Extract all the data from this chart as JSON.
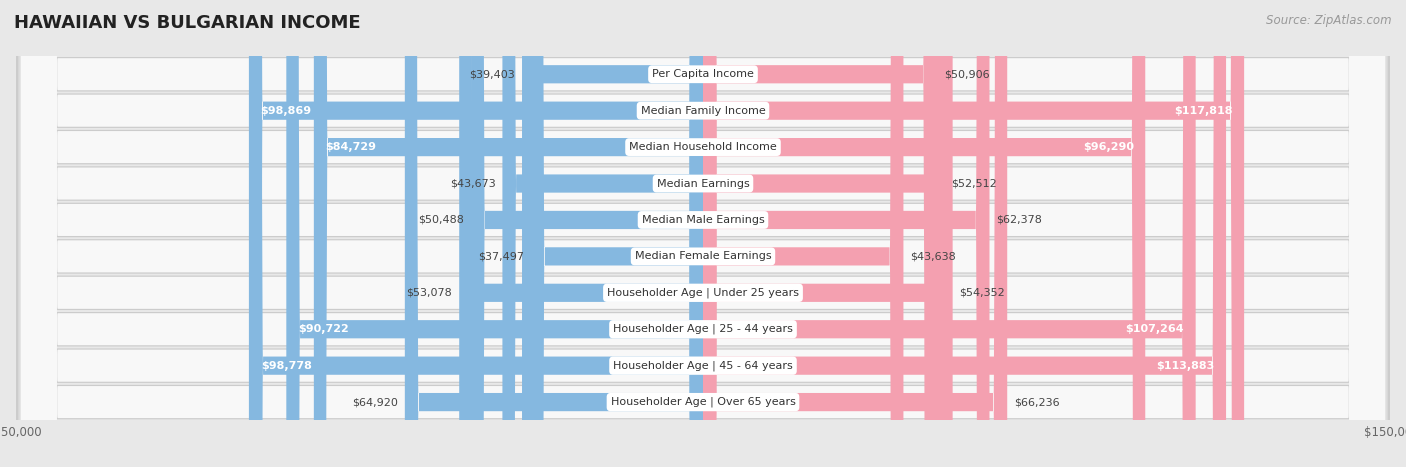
{
  "title": "HAWAIIAN VS BULGARIAN INCOME",
  "source": "Source: ZipAtlas.com",
  "categories": [
    "Per Capita Income",
    "Median Family Income",
    "Median Household Income",
    "Median Earnings",
    "Median Male Earnings",
    "Median Female Earnings",
    "Householder Age | Under 25 years",
    "Householder Age | 25 - 44 years",
    "Householder Age | 45 - 64 years",
    "Householder Age | Over 65 years"
  ],
  "hawaiian_values": [
    39403,
    98869,
    84729,
    43673,
    50488,
    37497,
    53078,
    90722,
    98778,
    64920
  ],
  "bulgarian_values": [
    50906,
    117818,
    96290,
    52512,
    62378,
    43638,
    54352,
    107264,
    113883,
    66236
  ],
  "hawaiian_labels": [
    "$39,403",
    "$98,869",
    "$84,729",
    "$43,673",
    "$50,488",
    "$37,497",
    "$53,078",
    "$90,722",
    "$98,778",
    "$64,920"
  ],
  "bulgarian_labels": [
    "$50,906",
    "$117,818",
    "$96,290",
    "$52,512",
    "$62,378",
    "$43,638",
    "$54,352",
    "$107,264",
    "$113,883",
    "$66,236"
  ],
  "hawaiian_color": "#85B8E0",
  "bulgarian_color": "#F4A0B0",
  "max_value": 150000,
  "bar_height": 0.5,
  "bg_color": "#e8e8e8",
  "row_bg_color": "#f8f8f8",
  "label_white_threshold_hawaiian": [
    false,
    true,
    true,
    false,
    false,
    false,
    false,
    true,
    true,
    false
  ],
  "label_white_threshold_bulgarian": [
    false,
    true,
    true,
    false,
    false,
    false,
    false,
    true,
    true,
    false
  ],
  "title_fontsize": 13,
  "source_fontsize": 8.5,
  "tick_fontsize": 8.5,
  "bar_label_fontsize": 8,
  "category_fontsize": 8,
  "legend_fontsize": 8.5
}
